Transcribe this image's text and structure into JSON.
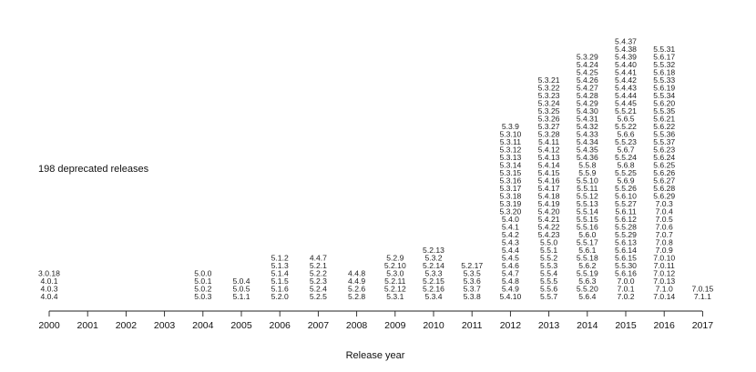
{
  "chart_data": {
    "type": "stacked-text-columns",
    "title": "",
    "xlabel": "Release year",
    "ylabel": "",
    "annotation": "198 deprecated releases",
    "grid": false,
    "legend": "none",
    "columns": [
      {
        "year": "2000",
        "versions": [
          "3.0.18",
          "4.0.1",
          "4.0.3",
          "4.0.4"
        ]
      },
      {
        "year": "2001",
        "versions": []
      },
      {
        "year": "2002",
        "versions": []
      },
      {
        "year": "2003",
        "versions": []
      },
      {
        "year": "2004",
        "versions": [
          "5.0.0",
          "5.0.1",
          "5.0.2",
          "5.0.3"
        ]
      },
      {
        "year": "2005",
        "versions": [
          "5.0.4",
          "5.0.5",
          "5.1.1"
        ]
      },
      {
        "year": "2006",
        "versions": [
          "5.1.2",
          "5.1.3",
          "5.1.4",
          "5.1.5",
          "5.1.6",
          "5.2.0"
        ]
      },
      {
        "year": "2007",
        "versions": [
          "4.4.7",
          "5.2.1",
          "5.2.2",
          "5.2.3",
          "5.2.4",
          "5.2.5"
        ]
      },
      {
        "year": "2008",
        "versions": [
          "4.4.8",
          "4.4.9",
          "5.2.6",
          "5.2.8"
        ]
      },
      {
        "year": "2009",
        "versions": [
          "5.2.9",
          "5.2.10",
          "5.3.0",
          "5.2.11",
          "5.2.12",
          "5.3.1"
        ]
      },
      {
        "year": "2010",
        "versions": [
          "5.2.13",
          "5.3.2",
          "5.2.14",
          "5.3.3",
          "5.2.15",
          "5.2.16",
          "5.3.4"
        ]
      },
      {
        "year": "2011",
        "versions": [
          "5.2.17",
          "5.3.5",
          "5.3.6",
          "5.3.7",
          "5.3.8"
        ]
      },
      {
        "year": "2012",
        "versions": [
          "5.3.9",
          "5.3.10",
          "5.3.11",
          "5.3.12",
          "5.3.13",
          "5.3.14",
          "5.3.15",
          "5.3.16",
          "5.3.17",
          "5.3.18",
          "5.3.19",
          "5.3.20",
          "5.4.0",
          "5.4.1",
          "5.4.2",
          "5.4.3",
          "5.4.4",
          "5.4.5",
          "5.4.6",
          "5.4.7",
          "5.4.8",
          "5.4.9",
          "5.4.10"
        ]
      },
      {
        "year": "2013",
        "versions": [
          "5.3.21",
          "5.3.22",
          "5.3.23",
          "5.3.24",
          "5.3.25",
          "5.3.26",
          "5.3.27",
          "5.3.28",
          "5.4.11",
          "5.4.12",
          "5.4.13",
          "5.4.14",
          "5.4.15",
          "5.4.16",
          "5.4.17",
          "5.4.18",
          "5.4.19",
          "5.4.20",
          "5.4.21",
          "5.4.22",
          "5.4.23",
          "5.5.0",
          "5.5.1",
          "5.5.2",
          "5.5.3",
          "5.5.4",
          "5.5.5",
          "5.5.6",
          "5.5.7"
        ]
      },
      {
        "year": "2014",
        "versions": [
          "5.3.29",
          "5.4.24",
          "5.4.25",
          "5.4.26",
          "5.4.27",
          "5.4.28",
          "5.4.29",
          "5.4.30",
          "5.4.31",
          "5.4.32",
          "5.4.33",
          "5.4.34",
          "5.4.35",
          "5.4.36",
          "5.5.8",
          "5.5.9",
          "5.5.10",
          "5.5.11",
          "5.5.12",
          "5.5.13",
          "5.5.14",
          "5.5.15",
          "5.5.16",
          "5.6.0",
          "5.5.17",
          "5.6.1",
          "5.5.18",
          "5.6.2",
          "5.5.19",
          "5.6.3",
          "5.5.20",
          "5.6.4"
        ]
      },
      {
        "year": "2015",
        "versions": [
          "5.4.37",
          "5.4.38",
          "5.4.39",
          "5.4.40",
          "5.4.41",
          "5.4.42",
          "5.4.43",
          "5.4.44",
          "5.4.45",
          "5.5.21",
          "5.6.5",
          "5.5.22",
          "5.6.6",
          "5.5.23",
          "5.6.7",
          "5.5.24",
          "5.6.8",
          "5.5.25",
          "5.6.9",
          "5.5.26",
          "5.6.10",
          "5.5.27",
          "5.6.11",
          "5.6.12",
          "5.5.28",
          "5.5.29",
          "5.6.13",
          "5.6.14",
          "5.6.15",
          "5.5.30",
          "5.6.16",
          "7.0.0",
          "7.0.1",
          "7.0.2"
        ]
      },
      {
        "year": "2016",
        "versions": [
          "5.5.31",
          "5.6.17",
          "5.5.32",
          "5.6.18",
          "5.5.33",
          "5.6.19",
          "5.5.34",
          "5.6.20",
          "5.5.35",
          "5.6.21",
          "5.6.22",
          "5.5.36",
          "5.5.37",
          "5.6.23",
          "5.6.24",
          "5.6.25",
          "5.6.26",
          "5.6.27",
          "5.6.28",
          "5.6.29",
          "7.0.3",
          "7.0.4",
          "7.0.5",
          "7.0.6",
          "7.0.7",
          "7.0.8",
          "7.0.9",
          "7.0.10",
          "7.0.11",
          "7.0.12",
          "7.0.13",
          "7.1.0",
          "7.0.14"
        ]
      },
      {
        "year": "2017",
        "versions": [
          "7.0.15",
          "7.1.1"
        ]
      }
    ]
  }
}
